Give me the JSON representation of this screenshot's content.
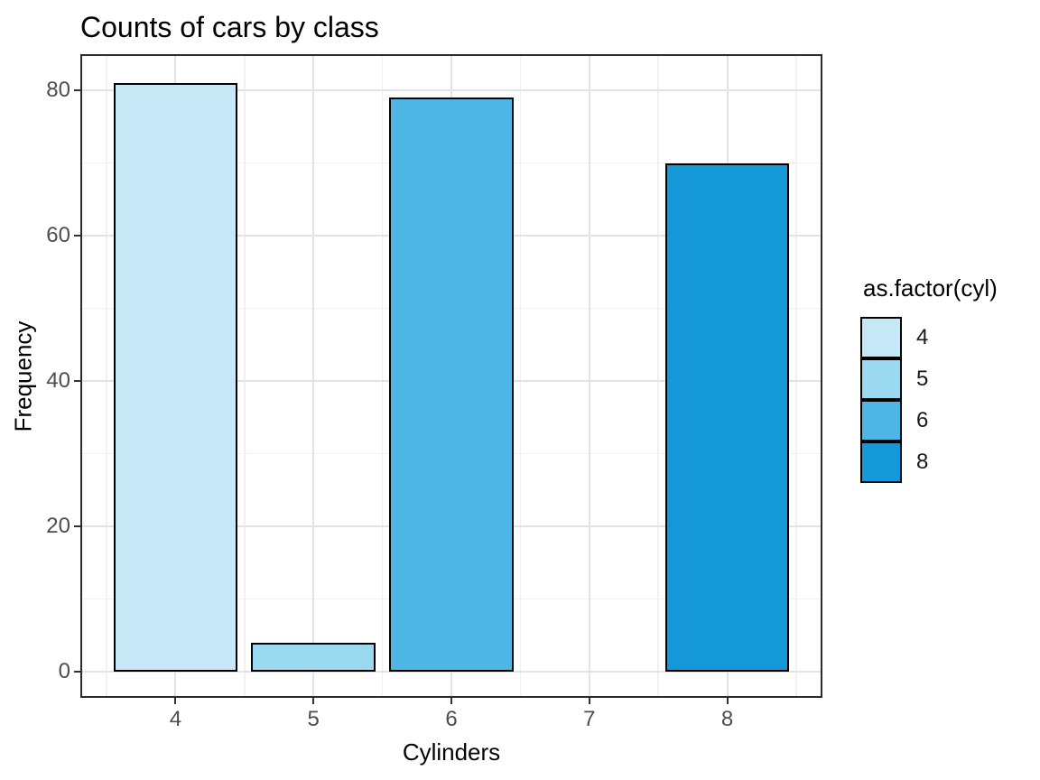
{
  "chart_data": {
    "type": "bar",
    "title": "Counts of cars by class",
    "xlabel": "Cylinders",
    "ylabel": "Frequency",
    "categories": [
      "4",
      "5",
      "6",
      "8"
    ],
    "bar_x": [
      4,
      5,
      6,
      8
    ],
    "values": [
      81,
      4,
      79,
      70
    ],
    "bar_colors": [
      "#C6E8F6",
      "#9BD9F0",
      "#4DB6E4",
      "#1598D8"
    ],
    "bar_border_color": "#000000",
    "bar_width": 0.9,
    "x_ticks": [
      "4",
      "5",
      "6",
      "7",
      "8"
    ],
    "x_tick_values": [
      4,
      5,
      6,
      7,
      8
    ],
    "y_ticks": [
      "0",
      "20",
      "40",
      "60",
      "80"
    ],
    "y_tick_values": [
      0,
      20,
      40,
      60,
      80
    ],
    "x_minor_values": [
      3.5,
      4.5,
      5.5,
      6.5,
      7.5,
      8.5
    ],
    "y_minor_values": [
      10,
      30,
      50,
      70
    ],
    "xlim": [
      3.31,
      8.69
    ],
    "ylim": [
      -3.6,
      85.0
    ],
    "grid": {
      "major_color": "#e3e3e3",
      "minor_color": "#f1f1f1",
      "visible": true
    },
    "panel": {
      "border_color": "#2b2b2b",
      "background": "#ffffff"
    },
    "axis_colors": {
      "tick_text": "#4d4d4d",
      "tick_mark": "#333333",
      "title_text": "#000000"
    },
    "legend": {
      "title": "as.factor(cyl)",
      "position": "right",
      "entries": [
        {
          "label": "4",
          "color": "#C6E8F6"
        },
        {
          "label": "5",
          "color": "#9BD9F0"
        },
        {
          "label": "6",
          "color": "#4DB6E4"
        },
        {
          "label": "8",
          "color": "#1598D8"
        }
      ]
    }
  }
}
